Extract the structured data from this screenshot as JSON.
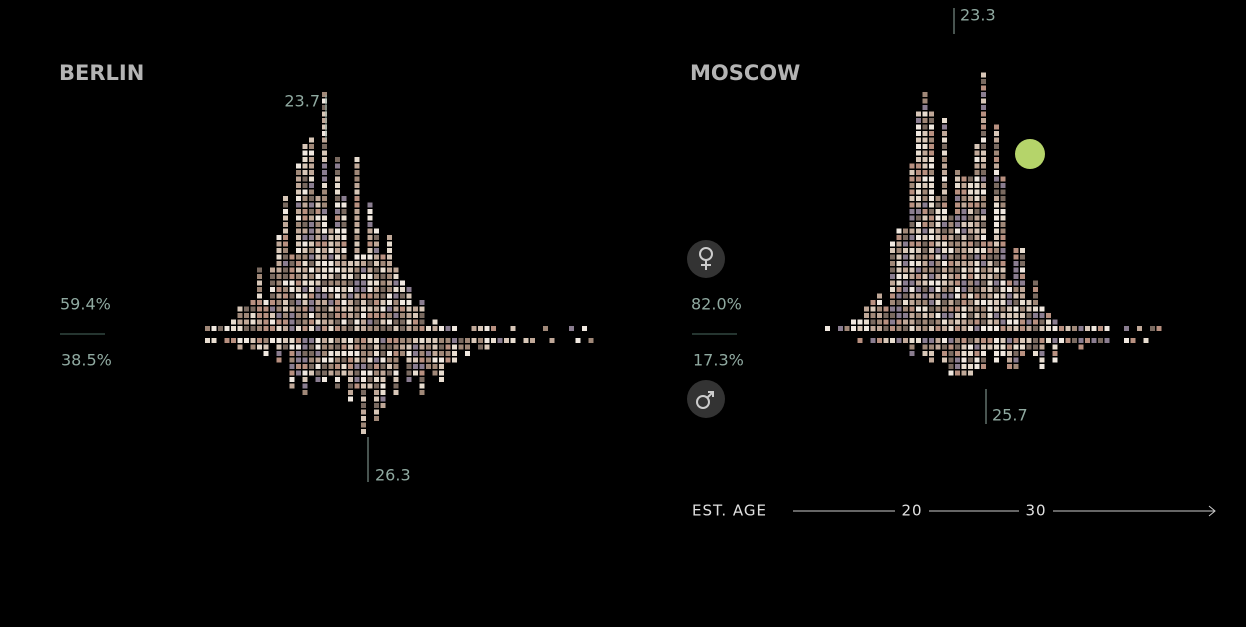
{
  "panels": [
    {
      "city": "BERLIN",
      "female_share": "59.4%",
      "male_share": "38.5%",
      "female_median_age": "23.7",
      "male_median_age": "26.3"
    },
    {
      "city": "MOSCOW",
      "female_share": "82.0%",
      "male_share": "17.3%",
      "female_median_age": "23.3",
      "male_median_age": "25.7"
    }
  ],
  "axis": {
    "label": "EST. AGE",
    "ticks": [
      "20",
      "30"
    ]
  }
}
